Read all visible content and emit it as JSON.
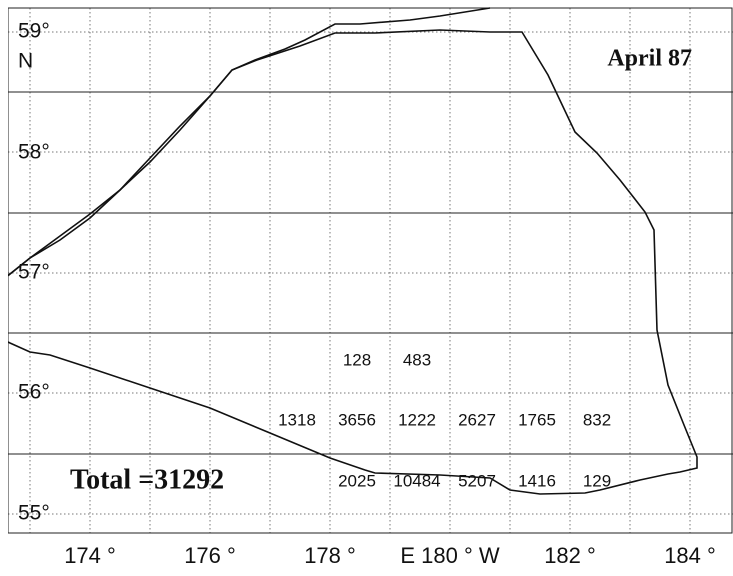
{
  "title": "April 87",
  "total": "Total =31292",
  "lat_labels": [
    "59°",
    "N",
    "58°",
    "57°",
    "56°",
    "55°"
  ],
  "lon_labels": [
    "174 °",
    "176 °",
    "178 °",
    "E 180 ° W",
    "182 °",
    "184 °"
  ],
  "cells": [
    [
      128,
      483
    ],
    [
      1318,
      3656,
      1222,
      2627,
      1765,
      832
    ],
    [
      2025,
      10484,
      5207,
      1416,
      129
    ]
  ]
}
